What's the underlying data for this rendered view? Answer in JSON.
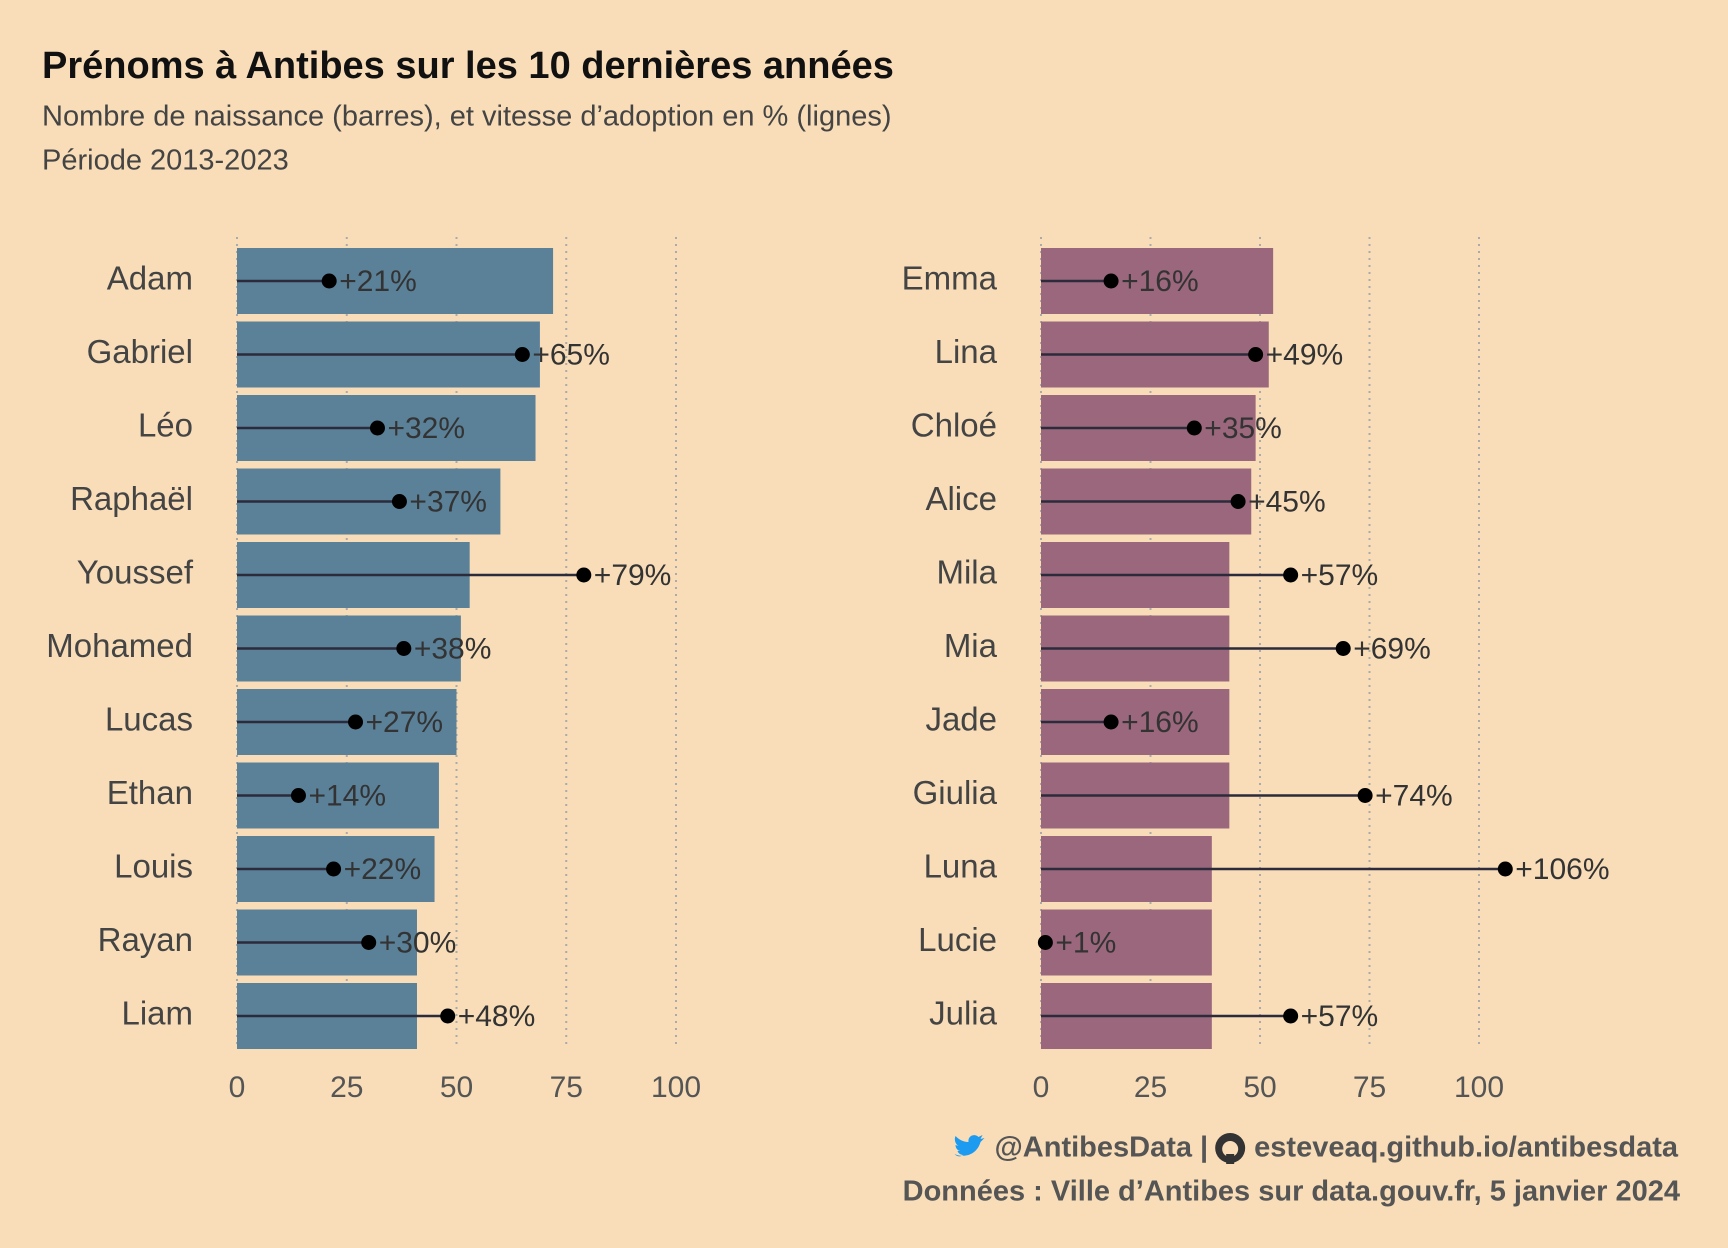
{
  "title": "Prénoms à Antibes sur les 10 dernières années",
  "subtitle": [
    "Nombre de naissance (barres), et vitesse d’adoption en % (lignes)",
    "Période 2013-2023"
  ],
  "caption": {
    "twitter": "@AntibesData |",
    "github": "esteveaq.github.io/antibesdata",
    "source": "Données : Ville d’Antibes sur data.gouv.fr, 5 janvier 2024"
  },
  "chart_data": [
    {
      "type": "bar",
      "color": "#5b8199",
      "categories": [
        "Adam",
        "Gabriel",
        "Léo",
        "Raphaël",
        "Youssef",
        "Mohamed",
        "Lucas",
        "Ethan",
        "Louis",
        "Rayan",
        "Liam"
      ],
      "values": [
        72,
        69,
        68,
        60,
        53,
        51,
        50,
        46,
        45,
        41,
        41
      ],
      "lollipop": {
        "values": [
          21,
          65,
          32,
          37,
          79,
          38,
          27,
          14,
          22,
          30,
          48
        ],
        "value_labels": [
          "+21%",
          "+65%",
          "+32%",
          "+37%",
          "+79%",
          "+38%",
          "+27%",
          "+14%",
          "+22%",
          "+30%",
          "+48%"
        ]
      },
      "xlim": [
        0,
        100
      ],
      "xticks": [
        0,
        25,
        50,
        75,
        100
      ],
      "grid": true
    },
    {
      "type": "bar",
      "color": "#9a677c",
      "categories": [
        "Emma",
        "Lina",
        "Chloé",
        "Alice",
        "Mila",
        "Mia",
        "Jade",
        "Giulia",
        "Luna",
        "Lucie",
        "Julia"
      ],
      "values": [
        53,
        52,
        49,
        48,
        43,
        43,
        43,
        43,
        39,
        39,
        39
      ],
      "lollipop": {
        "values": [
          16,
          49,
          35,
          45,
          57,
          69,
          16,
          74,
          106,
          1,
          57
        ],
        "value_labels": [
          "+16%",
          "+49%",
          "+35%",
          "+45%",
          "+57%",
          "+69%",
          "+16%",
          "+74%",
          "+106%",
          "+1%",
          "+57%"
        ]
      },
      "xlim": [
        0,
        100
      ],
      "xticks": [
        0,
        25,
        50,
        75,
        100
      ],
      "grid": true
    }
  ]
}
